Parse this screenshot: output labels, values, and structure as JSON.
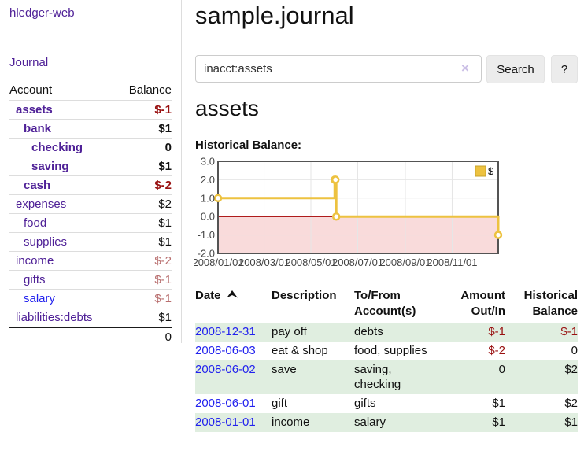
{
  "sidebar": {
    "app_title": "hledger-web",
    "journal_link": "Journal",
    "accounts_table": {
      "headers": [
        "Account",
        "Balance"
      ],
      "rows": [
        {
          "name": "assets",
          "balance": "$-1",
          "depth": 0,
          "bold": true,
          "negative": true,
          "link_style": "purple"
        },
        {
          "name": "bank",
          "balance": "$1",
          "depth": 1,
          "bold": true,
          "negative": false,
          "link_style": "purple"
        },
        {
          "name": "checking",
          "balance": "0",
          "depth": 2,
          "bold": true,
          "negative": false,
          "link_style": "purple"
        },
        {
          "name": "saving",
          "balance": "$1",
          "depth": 2,
          "bold": true,
          "negative": false,
          "link_style": "purple"
        },
        {
          "name": "cash",
          "balance": "$-2",
          "depth": 1,
          "bold": true,
          "negative": true,
          "link_style": "purple"
        },
        {
          "name": "expenses",
          "balance": "$2",
          "depth": 0,
          "bold": false,
          "negative": false,
          "link_style": "purple"
        },
        {
          "name": "food",
          "balance": "$1",
          "depth": 1,
          "bold": false,
          "negative": false,
          "link_style": "purple"
        },
        {
          "name": "supplies",
          "balance": "$1",
          "depth": 1,
          "bold": false,
          "negative": false,
          "link_style": "purple"
        },
        {
          "name": "income",
          "balance": "$-2",
          "depth": 0,
          "bold": false,
          "negative": true,
          "link_style": "purple"
        },
        {
          "name": "gifts",
          "balance": "$-1",
          "depth": 1,
          "bold": false,
          "negative": true,
          "link_style": "purple"
        },
        {
          "name": "salary",
          "balance": "$-1",
          "depth": 1,
          "bold": false,
          "negative": true,
          "link_style": "blue"
        },
        {
          "name": "liabilities:debts",
          "balance": "$1",
          "depth": 0,
          "bold": false,
          "negative": false,
          "link_style": "purple"
        }
      ],
      "total": "0"
    }
  },
  "header": {
    "title": "sample.journal"
  },
  "search": {
    "value": "inacct:assets",
    "clear_icon": "×",
    "button_label": "Search",
    "help_label": "?"
  },
  "account_page": {
    "title": "assets",
    "chart_label": "Historical Balance:"
  },
  "chart_data": {
    "type": "line",
    "title": "Historical Balance:",
    "series": [
      {
        "name": "$",
        "color": "#edc240",
        "step": true,
        "points": [
          {
            "x": "2008-01-01",
            "y": 1.0
          },
          {
            "x": "2008-06-01",
            "y": 2.0
          },
          {
            "x": "2008-06-02",
            "y": 2.0
          },
          {
            "x": "2008-06-03",
            "y": 0.0
          },
          {
            "x": "2008-12-31",
            "y": -1.0
          }
        ]
      }
    ],
    "ylim": [
      -2.0,
      3.0
    ],
    "ytick_labels": [
      "3.0",
      "2.0",
      "1.0",
      "0.0",
      "-1.0",
      "-2.0"
    ],
    "xtick_labels": [
      "2008/01/01",
      "2008/03/01",
      "2008/05/01",
      "2008/07/01",
      "2008/09/01",
      "2008/11/01"
    ],
    "x_range": [
      "2008-01-01",
      "2008-12-31"
    ],
    "grid": true,
    "legend_position": "top-right",
    "legend_label": "$"
  },
  "register_table": {
    "headers": [
      {
        "lines": [
          "Date"
        ],
        "align": "left",
        "sort": "asc"
      },
      {
        "lines": [
          "Description"
        ],
        "align": "left"
      },
      {
        "lines": [
          "To/From",
          "Account(s)"
        ],
        "align": "left"
      },
      {
        "lines": [
          "Amount",
          "Out/In"
        ],
        "align": "right"
      },
      {
        "lines": [
          "Historical",
          "Balance"
        ],
        "align": "right"
      }
    ],
    "rows": [
      {
        "date": "2008-12-31",
        "description": "pay off",
        "accounts": "debts",
        "amount": "$-1",
        "balance": "$-1"
      },
      {
        "date": "2008-06-03",
        "description": "eat & shop",
        "accounts": "food, supplies",
        "amount": "$-2",
        "balance": "0"
      },
      {
        "date": "2008-06-02",
        "description": "save",
        "accounts": "saving, checking",
        "amount": "0",
        "balance": "$2"
      },
      {
        "date": "2008-06-01",
        "description": "gift",
        "accounts": "gifts",
        "amount": "$1",
        "balance": "$2"
      },
      {
        "date": "2008-01-01",
        "description": "income",
        "accounts": "salary",
        "amount": "$1",
        "balance": "$1"
      }
    ]
  },
  "colors": {
    "link_purple": "#4f2197",
    "link_blue": "#2222ee",
    "negative_bold": "#991111",
    "negative_muted": "#b86e6e",
    "row_green": "#e0eee0",
    "series_gold": "#edc240",
    "series_gold_border": "#c7a32d",
    "zero_line": "#a40000",
    "negative_region": "#f9dbdb",
    "grid_line": "#e6e6e6",
    "chart_border": "#545454",
    "tick_label": "#444444"
  }
}
